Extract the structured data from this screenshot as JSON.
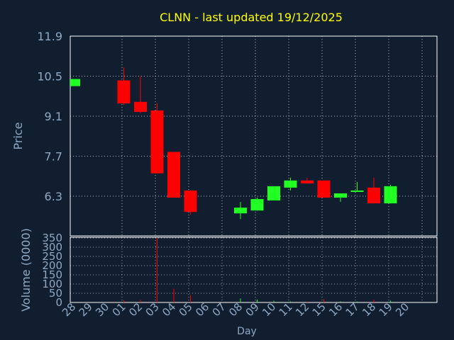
{
  "chart_data": [
    {
      "type": "candlestick",
      "title": "CLNN - last updated 19/12/2025",
      "ylabel": "Price",
      "xlabel": "Day",
      "ylim": [
        5.6,
        11.9
      ],
      "yticks": [
        "11.9",
        "10.5",
        "9.1",
        "7.7",
        "6.3"
      ],
      "yticks_values": [
        11.9,
        10.5,
        9.1,
        7.7,
        6.3
      ],
      "grid": true,
      "colors": {
        "up": "#22ff22",
        "down": "#ff0000",
        "title": "#ffff00",
        "axis_text": "#8fa9c4",
        "grid": "#ffffff",
        "background": "#111e30"
      },
      "categories": [
        "28",
        "29",
        "30",
        "01",
        "02",
        "03",
        "04",
        "05",
        "06",
        "07",
        "08",
        "09",
        "10",
        "11",
        "12",
        "15",
        "16",
        "17",
        "18",
        "19",
        "20"
      ],
      "candles": [
        {
          "day": "28",
          "open": 10.15,
          "high": 10.4,
          "low": 10.15,
          "close": 10.4
        },
        {
          "day": "01",
          "open": 10.35,
          "high": 10.8,
          "low": 9.5,
          "close": 9.55
        },
        {
          "day": "02",
          "open": 9.6,
          "high": 10.5,
          "low": 9.2,
          "close": 9.25
        },
        {
          "day": "03",
          "open": 9.3,
          "high": 9.55,
          "low": 7.1,
          "close": 7.1
        },
        {
          "day": "04",
          "open": 7.85,
          "high": 7.85,
          "low": 6.25,
          "close": 6.25
        },
        {
          "day": "05",
          "open": 6.5,
          "high": 6.5,
          "low": 5.65,
          "close": 5.75
        },
        {
          "day": "08",
          "open": 5.7,
          "high": 6.1,
          "low": 5.5,
          "close": 5.9
        },
        {
          "day": "09",
          "open": 5.8,
          "high": 6.25,
          "low": 5.8,
          "close": 6.2
        },
        {
          "day": "10",
          "open": 6.15,
          "high": 6.65,
          "low": 6.15,
          "close": 6.65
        },
        {
          "day": "11",
          "open": 6.6,
          "high": 6.95,
          "low": 6.5,
          "close": 6.85
        },
        {
          "day": "12",
          "open": 6.85,
          "high": 6.95,
          "low": 6.75,
          "close": 6.75
        },
        {
          "day": "15",
          "open": 6.85,
          "high": 6.85,
          "low": 6.25,
          "close": 6.25
        },
        {
          "day": "16",
          "open": 6.25,
          "high": 6.4,
          "low": 6.1,
          "close": 6.4
        },
        {
          "day": "17",
          "open": 6.45,
          "high": 6.8,
          "low": 6.45,
          "close": 6.5
        },
        {
          "day": "18",
          "open": 6.6,
          "high": 6.95,
          "low": 6.05,
          "close": 6.05
        },
        {
          "day": "19",
          "open": 6.05,
          "high": 6.7,
          "low": 6.05,
          "close": 6.65
        }
      ]
    },
    {
      "type": "bar",
      "ylabel": "Volume (0000)",
      "xlabel": "Day",
      "ylim": [
        0,
        350
      ],
      "yticks": [
        "350",
        "300",
        "250",
        "200",
        "150",
        "100",
        "50",
        "0"
      ],
      "yticks_values": [
        350,
        300,
        250,
        200,
        150,
        100,
        50,
        0
      ],
      "categories": [
        "28",
        "29",
        "30",
        "01",
        "02",
        "03",
        "04",
        "05",
        "06",
        "07",
        "08",
        "09",
        "10",
        "11",
        "12",
        "15",
        "16",
        "17",
        "18",
        "19",
        "20"
      ],
      "bars": [
        {
          "day": "28",
          "value": 1,
          "direction": "up"
        },
        {
          "day": "01",
          "value": 12,
          "direction": "down"
        },
        {
          "day": "02",
          "value": 14,
          "direction": "down"
        },
        {
          "day": "03",
          "value": 350,
          "direction": "down"
        },
        {
          "day": "04",
          "value": 75,
          "direction": "down"
        },
        {
          "day": "05",
          "value": 40,
          "direction": "down"
        },
        {
          "day": "08",
          "value": 22,
          "direction": "up"
        },
        {
          "day": "09",
          "value": 16,
          "direction": "up"
        },
        {
          "day": "10",
          "value": 10,
          "direction": "up"
        },
        {
          "day": "11",
          "value": 6,
          "direction": "up"
        },
        {
          "day": "12",
          "value": 6,
          "direction": "down"
        },
        {
          "day": "15",
          "value": 18,
          "direction": "down"
        },
        {
          "day": "16",
          "value": 6,
          "direction": "up"
        },
        {
          "day": "17",
          "value": 5,
          "direction": "up"
        },
        {
          "day": "18",
          "value": 14,
          "direction": "down"
        },
        {
          "day": "19",
          "value": 10,
          "direction": "up"
        }
      ]
    }
  ]
}
